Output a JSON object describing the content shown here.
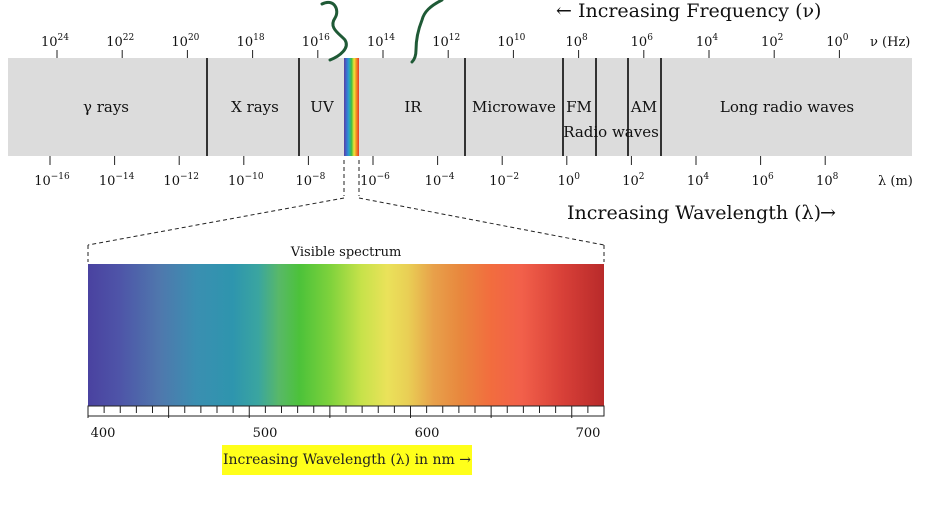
{
  "frequency_axis": {
    "title": "← Increasing Frequency (ν)",
    "unit": "ν (Hz)",
    "ticks": [
      {
        "base": "10",
        "exp": "24"
      },
      {
        "base": "10",
        "exp": "22"
      },
      {
        "base": "10",
        "exp": "20"
      },
      {
        "base": "10",
        "exp": "18"
      },
      {
        "base": "10",
        "exp": "16"
      },
      {
        "base": "10",
        "exp": "14"
      },
      {
        "base": "10",
        "exp": "12"
      },
      {
        "base": "10",
        "exp": "10"
      },
      {
        "base": "10",
        "exp": "8"
      },
      {
        "base": "10",
        "exp": "6"
      },
      {
        "base": "10",
        "exp": "4"
      },
      {
        "base": "10",
        "exp": "2"
      },
      {
        "base": "10",
        "exp": "0"
      }
    ]
  },
  "wavelength_axis": {
    "title": "Increasing Wavelength (λ)",
    "arrow": "→",
    "unit": "λ (m)",
    "ticks": [
      {
        "base": "10",
        "exp": "−16"
      },
      {
        "base": "10",
        "exp": "−14"
      },
      {
        "base": "10",
        "exp": "−12"
      },
      {
        "base": "10",
        "exp": "−10"
      },
      {
        "base": "10",
        "exp": "−8"
      },
      {
        "base": "10",
        "exp": "−6"
      },
      {
        "base": "10",
        "exp": "−4"
      },
      {
        "base": "10",
        "exp": "−2"
      },
      {
        "base": "10",
        "exp": "0"
      },
      {
        "base": "10",
        "exp": "2"
      },
      {
        "base": "10",
        "exp": "4"
      },
      {
        "base": "10",
        "exp": "6"
      },
      {
        "base": "10",
        "exp": "8"
      }
    ]
  },
  "regions": {
    "gamma": "γ rays",
    "xray": "X rays",
    "uv": "UV",
    "ir": "IR",
    "microwave": "Microwave",
    "fm": "FM",
    "am": "AM",
    "radio": "Radio waves",
    "long_radio": "Long radio waves"
  },
  "visible": {
    "title": "Visible spectrum",
    "ticks": [
      "400",
      "500",
      "600",
      "700"
    ],
    "caption": "Increasing Wavelength (λ) in nm →"
  },
  "colors": {
    "band": "#dcdcdc",
    "highlight": "#ffff1a",
    "annotation": "#1f5a36"
  }
}
